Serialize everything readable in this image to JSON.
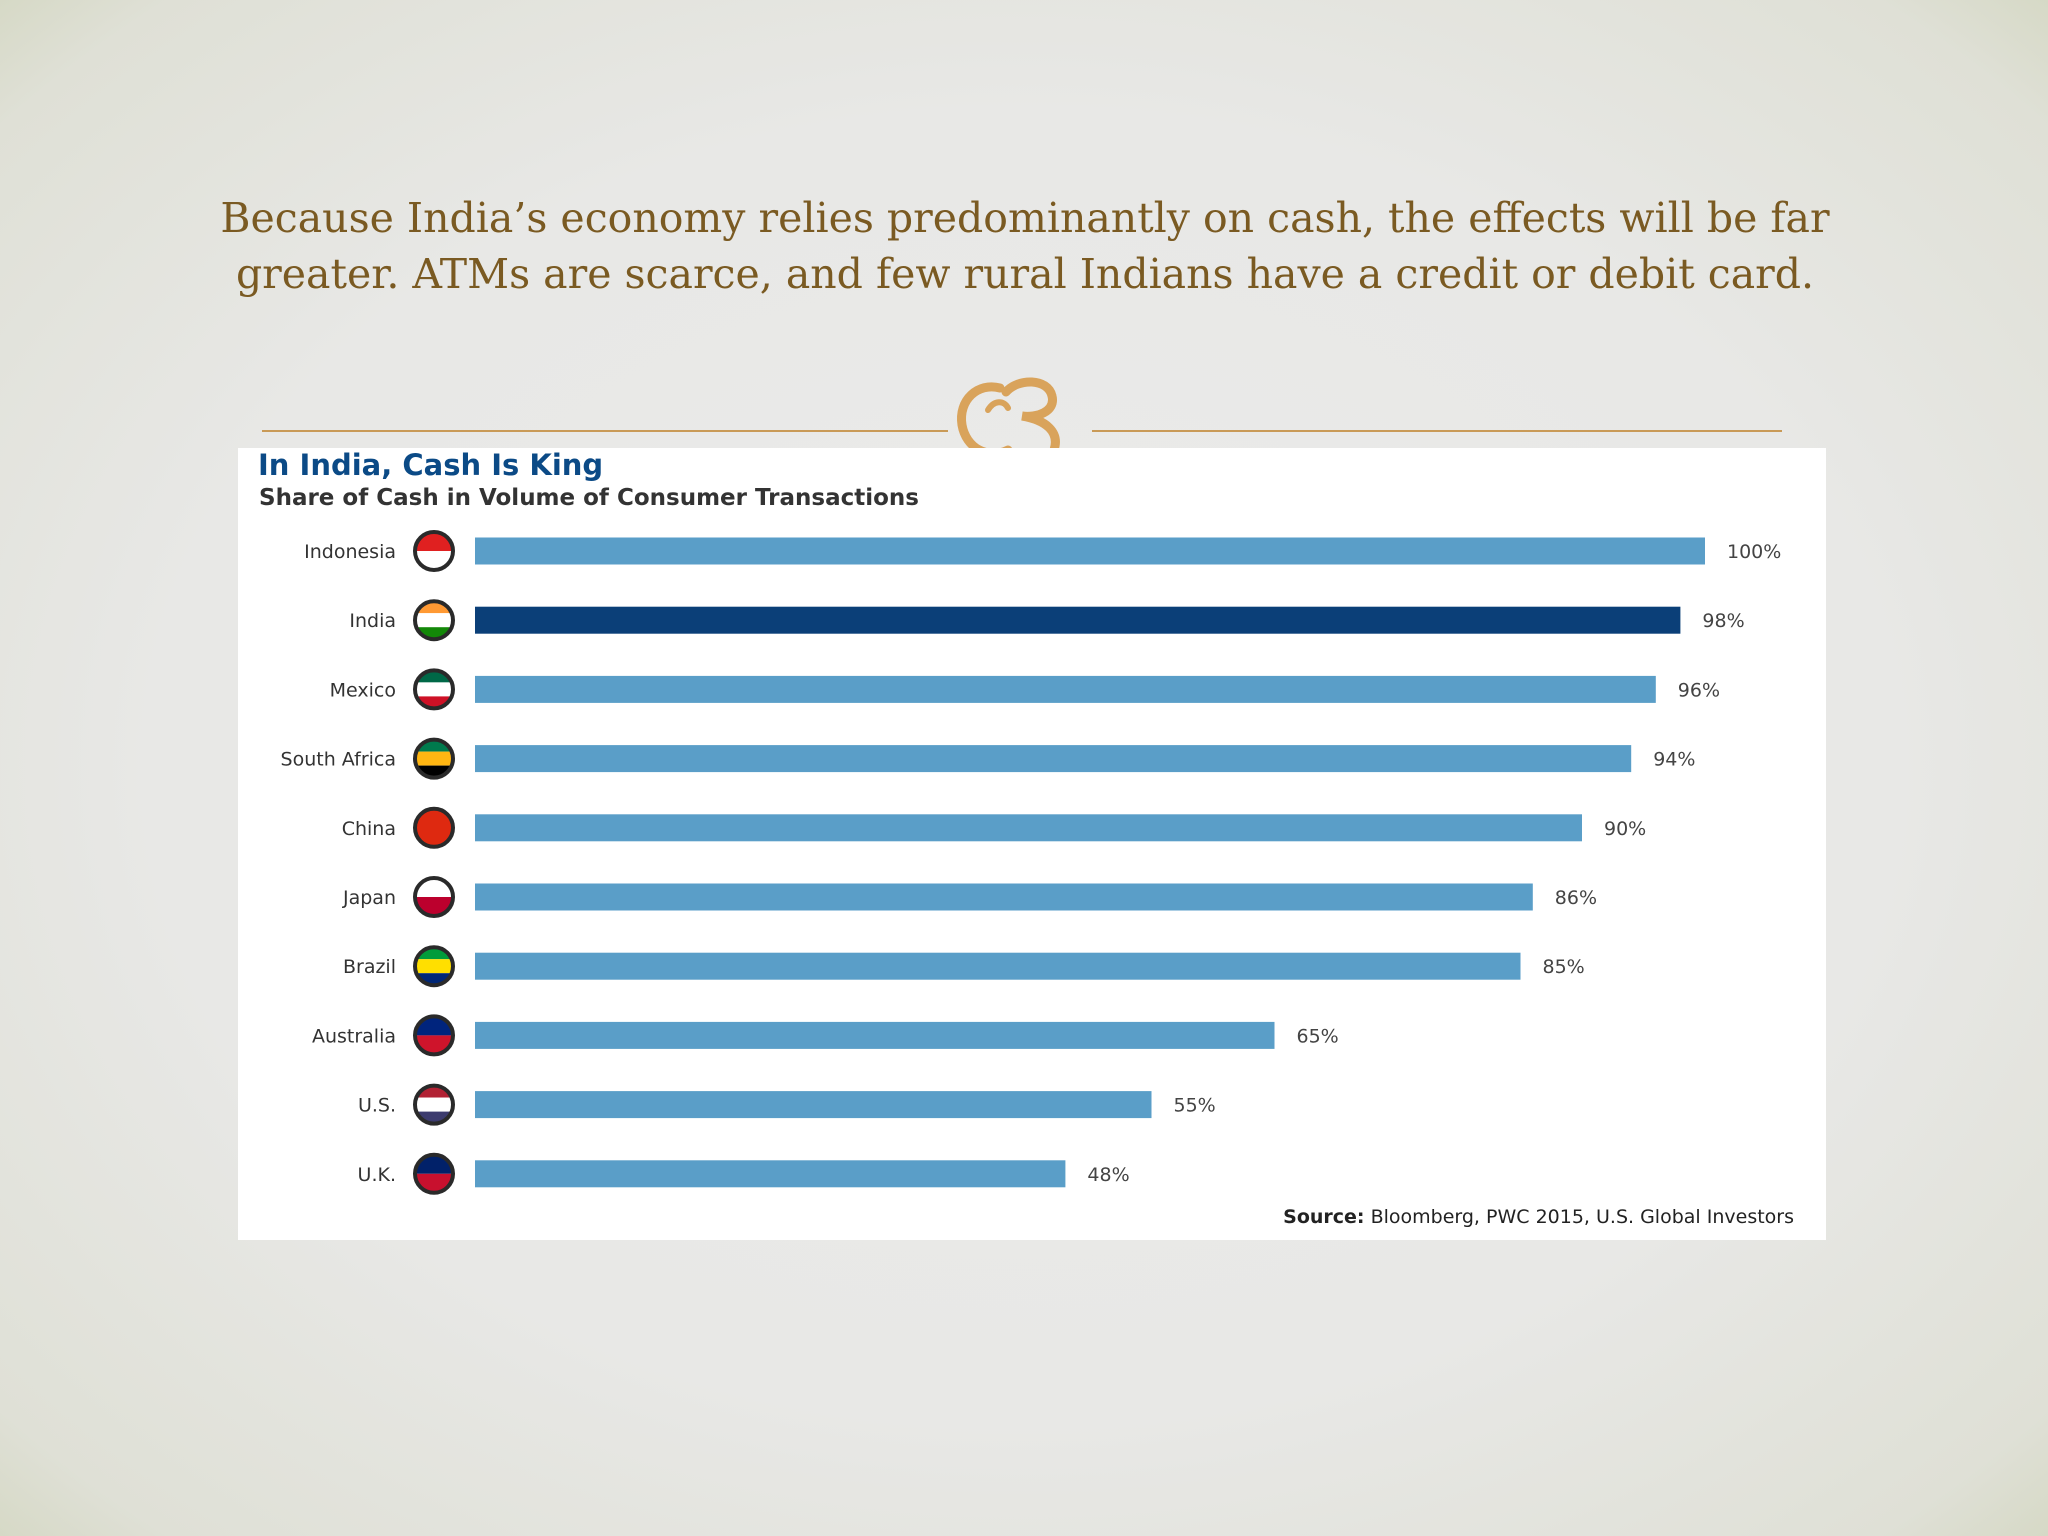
{
  "slide": {
    "caption_line1": "Because India’s economy relies predominantly on cash, the effects will be far",
    "caption_line2": "greater. ATMs are scarce, and few rural Indians have a credit or debit card."
  },
  "chart_data": {
    "type": "bar",
    "orientation": "horizontal",
    "title": "In India, Cash Is King",
    "subtitle": "Share of Cash in Volume of Consumer Transactions",
    "categories": [
      "Indonesia",
      "India",
      "Mexico",
      "South Africa",
      "China",
      "Japan",
      "Brazil",
      "Australia",
      "U.S.",
      "U.K."
    ],
    "values": [
      100,
      98,
      96,
      94,
      90,
      86,
      85,
      65,
      55,
      48
    ],
    "value_labels": [
      "100%",
      "98%",
      "96%",
      "94%",
      "90%",
      "86%",
      "85%",
      "65%",
      "55%",
      "48%"
    ],
    "xlim": [
      0,
      100
    ],
    "grid": false,
    "bar_color": "#5a9ec8",
    "highlight_color": "#0b3f78",
    "highlight_category": "India",
    "source_label": "Source:",
    "source_text": "Bloomberg, PWC 2015, U.S. Global Investors"
  }
}
